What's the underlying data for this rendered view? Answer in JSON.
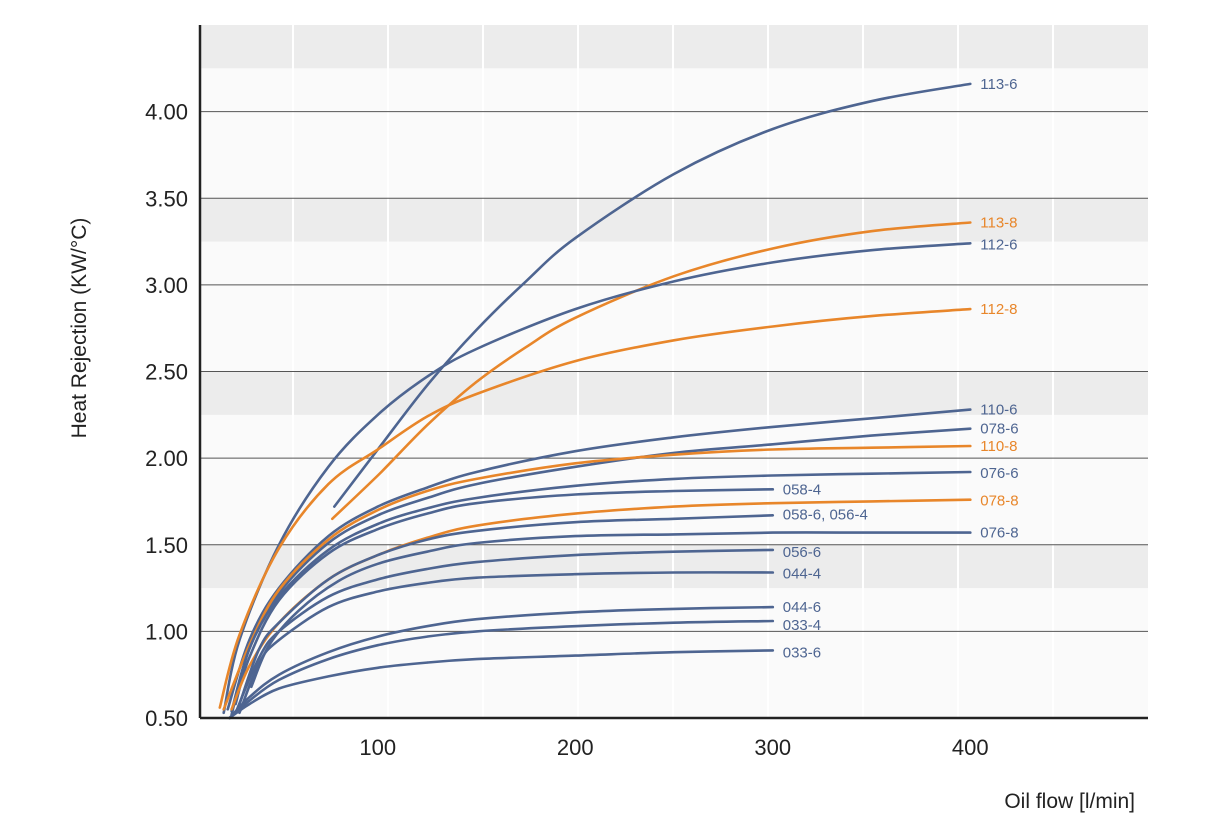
{
  "chart_data": {
    "type": "line",
    "title": "",
    "xlabel": "Oil flow [l/min]",
    "ylabel": "Heat Rejection (KW/°C)",
    "xlim": [
      10,
      490
    ],
    "ylim": [
      0.5,
      4.5
    ],
    "xticks": [
      100,
      200,
      300,
      400
    ],
    "xtick_labels": [
      "100",
      "200",
      "300",
      "400"
    ],
    "yticks": [
      0.5,
      1.0,
      1.5,
      2.0,
      2.5,
      3.0,
      3.5,
      4.0
    ],
    "ytick_labels": [
      "0.50",
      "1.00",
      "1.50",
      "2.00",
      "2.50",
      "3.00",
      "3.50",
      "4.00"
    ],
    "grid": "horizontal lines with banded background",
    "colors": {
      "blue": "#4e6591",
      "orange": "#e8862a",
      "band": "#ececec",
      "grid": "#555555",
      "axis": "#222222"
    },
    "series": [
      {
        "name": "113-6",
        "color": "blue",
        "x": [
          78,
          100,
          125,
          150,
          175,
          200,
          250,
          300,
          350,
          400
        ],
        "y": [
          1.72,
          2.05,
          2.42,
          2.74,
          3.02,
          3.27,
          3.64,
          3.9,
          4.06,
          4.16
        ]
      },
      {
        "name": "113-8",
        "color": "orange",
        "x": [
          77,
          100,
          125,
          150,
          175,
          200,
          250,
          300,
          350,
          400
        ],
        "y": [
          1.65,
          1.9,
          2.19,
          2.44,
          2.64,
          2.81,
          3.05,
          3.21,
          3.31,
          3.36
        ]
      },
      {
        "name": "112-6",
        "color": "blue",
        "x": [
          22,
          30,
          50,
          75,
          100,
          125,
          150,
          200,
          250,
          300,
          350,
          400
        ],
        "y": [
          0.53,
          0.95,
          1.5,
          1.95,
          2.25,
          2.47,
          2.63,
          2.86,
          3.02,
          3.13,
          3.2,
          3.24
        ]
      },
      {
        "name": "112-8",
        "color": "orange",
        "x": [
          20,
          30,
          50,
          75,
          100,
          125,
          150,
          200,
          250,
          300,
          350,
          400
        ],
        "y": [
          0.56,
          0.98,
          1.48,
          1.85,
          2.05,
          2.24,
          2.37,
          2.56,
          2.68,
          2.76,
          2.82,
          2.86
        ]
      },
      {
        "name": "110-6",
        "color": "blue",
        "x": [
          24,
          35,
          50,
          75,
          100,
          125,
          150,
          200,
          250,
          300,
          350,
          400
        ],
        "y": [
          0.55,
          0.95,
          1.25,
          1.55,
          1.72,
          1.83,
          1.92,
          2.04,
          2.12,
          2.18,
          2.23,
          2.28
        ]
      },
      {
        "name": "078-6",
        "color": "blue",
        "x": [
          26,
          35,
          50,
          75,
          100,
          125,
          150,
          200,
          250,
          300,
          350,
          400
        ],
        "y": [
          0.52,
          0.9,
          1.22,
          1.51,
          1.67,
          1.77,
          1.85,
          1.95,
          2.03,
          2.08,
          2.13,
          2.17
        ]
      },
      {
        "name": "110-8",
        "color": "orange",
        "x": [
          22,
          35,
          50,
          75,
          100,
          125,
          150,
          200,
          250,
          300,
          350,
          400
        ],
        "y": [
          0.55,
          0.92,
          1.24,
          1.53,
          1.7,
          1.81,
          1.88,
          1.97,
          2.02,
          2.05,
          2.06,
          2.07
        ]
      },
      {
        "name": "076-6",
        "color": "blue",
        "x": [
          26,
          35,
          50,
          75,
          100,
          125,
          150,
          200,
          250,
          300,
          350,
          400
        ],
        "y": [
          0.54,
          0.9,
          1.2,
          1.47,
          1.62,
          1.71,
          1.77,
          1.84,
          1.88,
          1.9,
          1.91,
          1.92
        ]
      },
      {
        "name": "058-4",
        "color": "blue",
        "x": [
          28,
          35,
          50,
          75,
          100,
          125,
          150,
          200,
          250,
          300
        ],
        "y": [
          0.58,
          0.85,
          1.18,
          1.45,
          1.59,
          1.68,
          1.74,
          1.79,
          1.81,
          1.82
        ]
      },
      {
        "name": "078-8",
        "color": "orange",
        "x": [
          26,
          35,
          50,
          75,
          100,
          125,
          150,
          200,
          250,
          300,
          350,
          400
        ],
        "y": [
          0.55,
          0.8,
          1.05,
          1.3,
          1.44,
          1.54,
          1.61,
          1.68,
          1.72,
          1.74,
          1.75,
          1.76
        ]
      },
      {
        "name": "058-6, 056-4",
        "color": "blue",
        "x": [
          30,
          40,
          50,
          75,
          100,
          125,
          150,
          200,
          250,
          300
        ],
        "y": [
          0.58,
          0.9,
          1.05,
          1.3,
          1.44,
          1.53,
          1.58,
          1.63,
          1.65,
          1.67
        ]
      },
      {
        "name": "076-8",
        "color": "blue",
        "x": [
          36,
          45,
          60,
          80,
          100,
          125,
          150,
          200,
          250,
          300,
          350,
          400
        ],
        "y": [
          0.68,
          0.92,
          1.12,
          1.29,
          1.39,
          1.46,
          1.51,
          1.55,
          1.56,
          1.57,
          1.57,
          1.57
        ]
      },
      {
        "name": "056-6",
        "color": "blue",
        "x": [
          28,
          40,
          50,
          75,
          100,
          125,
          150,
          200,
          250,
          300
        ],
        "y": [
          0.53,
          0.85,
          1.0,
          1.2,
          1.3,
          1.36,
          1.4,
          1.44,
          1.46,
          1.47
        ]
      },
      {
        "name": "044-4",
        "color": "blue",
        "x": [
          30,
          40,
          50,
          75,
          100,
          125,
          150,
          200,
          250,
          300
        ],
        "y": [
          0.53,
          0.82,
          0.95,
          1.14,
          1.23,
          1.28,
          1.31,
          1.33,
          1.34,
          1.34
        ]
      },
      {
        "name": "044-6",
        "color": "blue",
        "x": [
          25,
          35,
          50,
          75,
          100,
          125,
          150,
          200,
          250,
          300
        ],
        "y": [
          0.5,
          0.62,
          0.75,
          0.88,
          0.97,
          1.03,
          1.07,
          1.11,
          1.13,
          1.14
        ]
      },
      {
        "name": "033-4",
        "color": "blue",
        "x": [
          25,
          35,
          50,
          75,
          100,
          125,
          150,
          200,
          250,
          300
        ],
        "y": [
          0.5,
          0.6,
          0.72,
          0.84,
          0.92,
          0.97,
          1.0,
          1.03,
          1.05,
          1.06
        ]
      },
      {
        "name": "033-6",
        "color": "blue",
        "x": [
          25,
          35,
          50,
          75,
          100,
          125,
          150,
          200,
          250,
          300
        ],
        "y": [
          0.5,
          0.58,
          0.67,
          0.74,
          0.79,
          0.82,
          0.84,
          0.86,
          0.88,
          0.89
        ]
      }
    ]
  }
}
